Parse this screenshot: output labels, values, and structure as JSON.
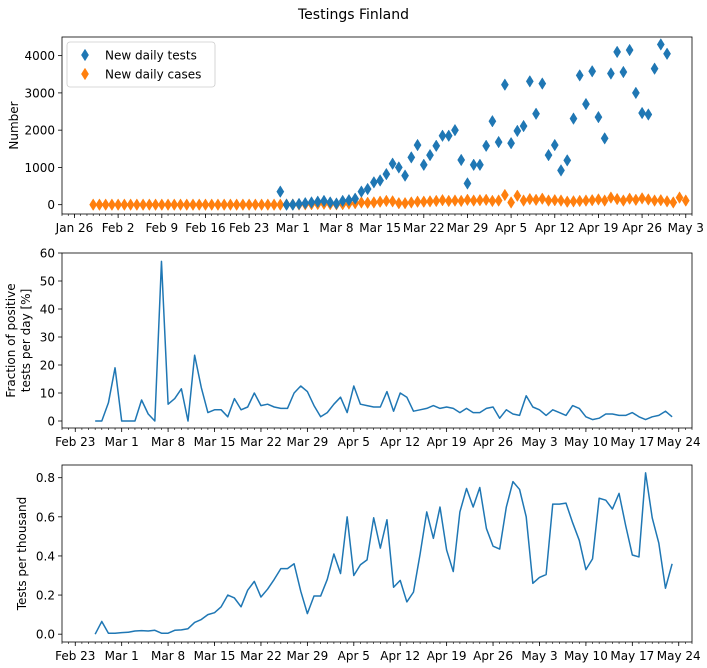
{
  "figure": {
    "suptitle": "Testings Finland"
  },
  "colors": {
    "tests": "#1f77b4",
    "cases": "#ff7f0e",
    "line": "#1f77b4",
    "axis": "#000000"
  },
  "chart_data": [
    {
      "type": "scatter",
      "xlabel": "",
      "ylabel": "Number",
      "xlim": [
        "2020-01-24",
        "2020-05-04"
      ],
      "ylim": [
        -250,
        4500
      ],
      "yticks": [
        0,
        1000,
        2000,
        3000,
        4000
      ],
      "xticks": [
        {
          "date": "2020-01-26",
          "label": "Jan 26"
        },
        {
          "date": "2020-02-02",
          "label": "Feb 2"
        },
        {
          "date": "2020-02-09",
          "label": "Feb 9"
        },
        {
          "date": "2020-02-16",
          "label": "Feb 16"
        },
        {
          "date": "2020-02-23",
          "label": "Feb 23"
        },
        {
          "date": "2020-03-01",
          "label": "Mar 1"
        },
        {
          "date": "2020-03-08",
          "label": "Mar 8"
        },
        {
          "date": "2020-03-15",
          "label": "Mar 15"
        },
        {
          "date": "2020-03-22",
          "label": "Mar 22"
        },
        {
          "date": "2020-03-29",
          "label": "Mar 29"
        },
        {
          "date": "2020-04-05",
          "label": "Apr 5"
        },
        {
          "date": "2020-04-12",
          "label": "Apr 12"
        },
        {
          "date": "2020-04-19",
          "label": "Apr 19"
        },
        {
          "date": "2020-04-26",
          "label": "Apr 26"
        },
        {
          "date": "2020-05-03",
          "label": "May 3"
        }
      ],
      "legend": {
        "position": "upper-left"
      },
      "series": [
        {
          "name": "New daily tests",
          "marker": "thin-diamond",
          "points": [
            [
              "2020-02-28",
              350
            ],
            [
              "2020-02-29",
              0
            ],
            [
              "2020-03-01",
              0
            ],
            [
              "2020-03-02",
              20
            ],
            [
              "2020-03-03",
              40
            ],
            [
              "2020-03-04",
              60
            ],
            [
              "2020-03-05",
              80
            ],
            [
              "2020-03-06",
              100
            ],
            [
              "2020-03-07",
              60
            ],
            [
              "2020-03-08",
              30
            ],
            [
              "2020-03-09",
              100
            ],
            [
              "2020-03-10",
              120
            ],
            [
              "2020-03-11",
              160
            ],
            [
              "2020-03-12",
              350
            ],
            [
              "2020-03-13",
              420
            ],
            [
              "2020-03-14",
              600
            ],
            [
              "2020-03-15",
              650
            ],
            [
              "2020-03-16",
              820
            ],
            [
              "2020-03-17",
              1100
            ],
            [
              "2020-03-18",
              1000
            ],
            [
              "2020-03-19",
              780
            ],
            [
              "2020-03-20",
              1270
            ],
            [
              "2020-03-21",
              1600
            ],
            [
              "2020-03-22",
              1070
            ],
            [
              "2020-03-23",
              1330
            ],
            [
              "2020-03-24",
              1580
            ],
            [
              "2020-03-25",
              1850
            ],
            [
              "2020-03-26",
              1850
            ],
            [
              "2020-03-27",
              2000
            ],
            [
              "2020-03-28",
              1200
            ],
            [
              "2020-03-29",
              570
            ],
            [
              "2020-03-30",
              1070
            ],
            [
              "2020-03-31",
              1070
            ],
            [
              "2020-04-01",
              1580
            ],
            [
              "2020-04-02",
              2240
            ],
            [
              "2020-04-03",
              1680
            ],
            [
              "2020-04-04",
              3220
            ],
            [
              "2020-04-05",
              1650
            ],
            [
              "2020-04-06",
              1980
            ],
            [
              "2020-04-07",
              2110
            ],
            [
              "2020-04-08",
              3310
            ],
            [
              "2020-04-09",
              2440
            ],
            [
              "2020-04-10",
              3250
            ],
            [
              "2020-04-11",
              1330
            ],
            [
              "2020-04-12",
              1600
            ],
            [
              "2020-04-13",
              920
            ],
            [
              "2020-04-14",
              1190
            ],
            [
              "2020-04-15",
              2310
            ],
            [
              "2020-04-16",
              3470
            ],
            [
              "2020-04-17",
              2700
            ],
            [
              "2020-04-18",
              3580
            ],
            [
              "2020-04-19",
              2350
            ],
            [
              "2020-04-20",
              1780
            ],
            [
              "2020-04-21",
              3520
            ],
            [
              "2020-04-22",
              4100
            ],
            [
              "2020-04-23",
              3560
            ],
            [
              "2020-04-24",
              4150
            ],
            [
              "2020-04-25",
              3000
            ],
            [
              "2020-04-26",
              2460
            ],
            [
              "2020-04-27",
              2420
            ],
            [
              "2020-04-28",
              3650
            ],
            [
              "2020-04-29",
              4300
            ],
            [
              "2020-04-30",
              4050
            ]
          ]
        },
        {
          "name": "New daily cases",
          "marker": "thin-diamond",
          "start": "2020-01-29",
          "values": [
            0,
            0,
            0,
            0,
            0,
            0,
            0,
            0,
            0,
            0,
            0,
            0,
            0,
            0,
            0,
            0,
            0,
            0,
            0,
            0,
            0,
            0,
            0,
            0,
            0,
            0,
            0,
            0,
            0,
            0,
            0,
            2,
            2,
            5,
            10,
            15,
            20,
            25,
            15,
            10,
            15,
            30,
            40,
            60,
            50,
            60,
            80,
            100,
            90,
            40,
            40,
            60,
            80,
            80,
            90,
            100,
            120,
            100,
            110,
            100,
            130,
            110,
            120,
            130,
            100,
            110,
            260,
            60,
            240,
            110,
            150,
            130,
            160,
            110,
            120,
            110,
            80,
            90,
            100,
            110,
            120,
            140,
            110,
            190,
            150,
            110,
            160,
            130,
            170,
            140,
            110,
            120,
            90,
            60,
            190,
            110
          ]
        }
      ]
    },
    {
      "type": "line",
      "xlabel": "",
      "ylabel": "Fraction of positive\ntests per day [%]",
      "xlim": [
        "2020-02-21",
        "2020-05-26"
      ],
      "ylim": [
        -2.5,
        60
      ],
      "yticks": [
        0,
        10,
        20,
        30,
        40,
        50,
        60
      ],
      "xticks": [
        {
          "date": "2020-02-23",
          "label": "Feb 23"
        },
        {
          "date": "2020-03-01",
          "label": "Mar 1"
        },
        {
          "date": "2020-03-08",
          "label": "Mar 8"
        },
        {
          "date": "2020-03-15",
          "label": "Mar 15"
        },
        {
          "date": "2020-03-22",
          "label": "Mar 22"
        },
        {
          "date": "2020-03-29",
          "label": "Mar 29"
        },
        {
          "date": "2020-04-05",
          "label": "Apr 5"
        },
        {
          "date": "2020-04-12",
          "label": "Apr 12"
        },
        {
          "date": "2020-04-19",
          "label": "Apr 19"
        },
        {
          "date": "2020-04-26",
          "label": "Apr 26"
        },
        {
          "date": "2020-05-03",
          "label": "May 3"
        },
        {
          "date": "2020-05-10",
          "label": "May 10"
        },
        {
          "date": "2020-05-17",
          "label": "May 17"
        },
        {
          "date": "2020-05-24",
          "label": "May 24"
        }
      ],
      "series": [
        {
          "name": "",
          "start": "2020-02-26",
          "values": [
            0,
            0,
            6.5,
            19,
            0,
            0,
            0,
            7.5,
            2.5,
            0,
            57,
            6,
            8,
            11.5,
            0,
            23.5,
            12,
            3,
            4,
            4,
            1.5,
            8,
            4,
            5,
            10,
            5.5,
            6,
            5,
            4.5,
            4.5,
            10,
            12.5,
            10.5,
            5.5,
            1.5,
            3,
            6,
            8.5,
            3,
            12.5,
            6,
            5.5,
            5,
            5,
            10.5,
            3.5,
            10,
            8.5,
            3.5,
            4,
            4.5,
            5.5,
            4.5,
            5,
            4.5,
            3,
            4.5,
            3,
            3,
            4.5,
            5,
            1,
            4,
            2.5,
            2,
            9,
            5,
            4,
            2,
            4,
            3,
            2,
            5.5,
            4.5,
            1.5,
            0.5,
            1,
            2.5,
            2.5,
            2,
            2,
            3,
            1.5,
            0.5,
            1.5,
            2,
            3.5,
            1.5
          ]
        }
      ]
    },
    {
      "type": "line",
      "xlabel": "",
      "ylabel": "Tests per thousand",
      "xlim": [
        "2020-02-21",
        "2020-05-26"
      ],
      "ylim": [
        -0.04,
        0.865
      ],
      "yticks": [
        0.0,
        0.2,
        0.4,
        0.6,
        0.8
      ],
      "ytick_labels": [
        "0.0",
        "0.2",
        "0.4",
        "0.6",
        "0.8"
      ],
      "xticks": [
        {
          "date": "2020-02-23",
          "label": "Feb 23"
        },
        {
          "date": "2020-03-01",
          "label": "Mar 1"
        },
        {
          "date": "2020-03-08",
          "label": "Mar 8"
        },
        {
          "date": "2020-03-15",
          "label": "Mar 15"
        },
        {
          "date": "2020-03-22",
          "label": "Mar 22"
        },
        {
          "date": "2020-03-29",
          "label": "Mar 29"
        },
        {
          "date": "2020-04-05",
          "label": "Apr 5"
        },
        {
          "date": "2020-04-12",
          "label": "Apr 12"
        },
        {
          "date": "2020-04-19",
          "label": "Apr 19"
        },
        {
          "date": "2020-04-26",
          "label": "Apr 26"
        },
        {
          "date": "2020-05-03",
          "label": "May 3"
        },
        {
          "date": "2020-05-10",
          "label": "May 10"
        },
        {
          "date": "2020-05-17",
          "label": "May 17"
        },
        {
          "date": "2020-05-24",
          "label": "May 24"
        }
      ],
      "series": [
        {
          "name": "",
          "start": "2020-02-26",
          "values": [
            0.0,
            0.065,
            0.005,
            0.005,
            0.008,
            0.01,
            0.016,
            0.018,
            0.016,
            0.02,
            0.005,
            0.005,
            0.02,
            0.022,
            0.028,
            0.06,
            0.075,
            0.1,
            0.11,
            0.14,
            0.2,
            0.185,
            0.14,
            0.225,
            0.27,
            0.19,
            0.23,
            0.28,
            0.335,
            0.335,
            0.36,
            0.22,
            0.105,
            0.195,
            0.195,
            0.28,
            0.41,
            0.31,
            0.6,
            0.3,
            0.355,
            0.38,
            0.595,
            0.44,
            0.585,
            0.24,
            0.275,
            0.165,
            0.215,
            0.41,
            0.625,
            0.49,
            0.65,
            0.43,
            0.32,
            0.625,
            0.745,
            0.65,
            0.75,
            0.54,
            0.45,
            0.435,
            0.65,
            0.78,
            0.74,
            0.6,
            0.26,
            0.29,
            0.305,
            0.665,
            0.665,
            0.67,
            0.57,
            0.48,
            0.33,
            0.385,
            0.695,
            0.685,
            0.64,
            0.72,
            0.555,
            0.405,
            0.395,
            0.825,
            0.595,
            0.465,
            0.235,
            0.36
          ]
        }
      ]
    }
  ]
}
